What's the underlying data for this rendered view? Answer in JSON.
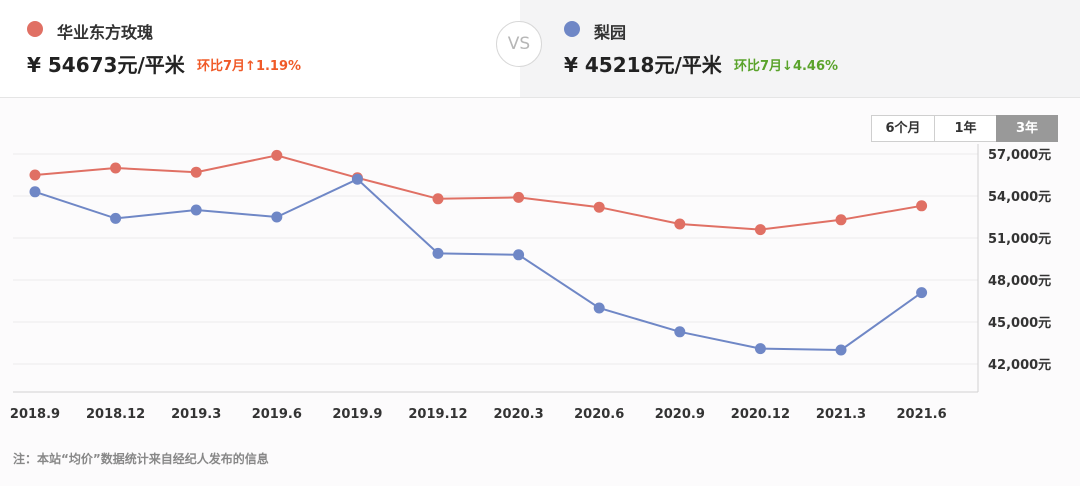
{
  "compare": {
    "left": {
      "name": "华业东方玫瑰",
      "price": "¥ 54673元/平米",
      "change": "环比7月↑1.19%",
      "color": "#e07064",
      "change_color": "#f05a28"
    },
    "vs_label": "VS",
    "right": {
      "name": "梨园",
      "price": "¥ 45218元/平米",
      "change": "环比7月↓4.46%",
      "color": "#6f87c6",
      "change_color": "#5aa32b"
    }
  },
  "periods": [
    "6个月",
    "1年",
    "3年"
  ],
  "active_period": "3年",
  "chart_data": {
    "type": "line",
    "categories": [
      "2018.9",
      "2018.12",
      "2019.3",
      "2019.6",
      "2019.9",
      "2019.12",
      "2020.3",
      "2020.6",
      "2020.9",
      "2020.12",
      "2021.3",
      "2021.6"
    ],
    "x_points": [
      2018.75,
      2018.92,
      2019.08,
      2019.25,
      2019.42,
      2019.58,
      2019.75,
      2019.92,
      2020.08,
      2020.25,
      2020.42,
      2020.58,
      2020.75,
      2020.92,
      2021.08,
      2021.25,
      2021.42
    ],
    "series": [
      {
        "name": "华业东方玫瑰",
        "color": "#e07064",
        "points": [
          [
            0,
            55500
          ],
          [
            1,
            56000
          ],
          [
            2,
            55700
          ],
          [
            3,
            56900
          ],
          [
            4,
            55300
          ],
          [
            5,
            53800
          ],
          [
            6,
            53900
          ],
          [
            7,
            53200
          ],
          [
            8,
            52000
          ],
          [
            9,
            51600
          ],
          [
            10,
            52300
          ],
          [
            11,
            53300
          ]
        ]
      },
      {
        "name": "梨园",
        "color": "#6f87c6",
        "points": [
          [
            0,
            54300
          ],
          [
            1,
            52400
          ],
          [
            2,
            53000
          ],
          [
            3,
            52500
          ],
          [
            4,
            55200
          ],
          [
            5,
            49900
          ],
          [
            6,
            49800
          ],
          [
            7,
            46000
          ],
          [
            8,
            44300
          ],
          [
            9,
            43100
          ],
          [
            10,
            43000
          ],
          [
            11,
            47100
          ]
        ]
      }
    ],
    "y_ticks": [
      42000,
      45000,
      48000,
      51000,
      54000,
      57000
    ],
    "y_tick_labels": [
      "42,000元",
      "45,000元",
      "48,000元",
      "51,000元",
      "54,000元",
      "57,000元"
    ],
    "ylim": [
      40000,
      58000
    ],
    "grid": true
  },
  "footnote": "注：本站“均价”数据统计来自经纪人发布的信息"
}
